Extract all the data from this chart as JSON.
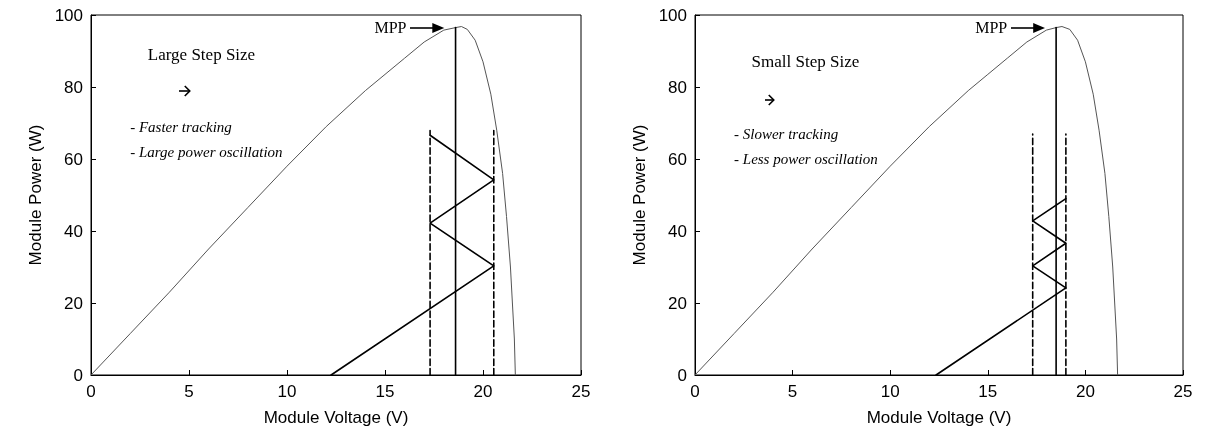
{
  "chart_data": [
    {
      "type": "line",
      "xlabel": "Module Voltage (V)",
      "ylabel": "Module Power (W)",
      "xlim": [
        0,
        25
      ],
      "xticks": [
        0,
        5,
        10,
        15,
        20,
        25
      ],
      "ylim": [
        0,
        100
      ],
      "yticks": [
        0,
        20,
        40,
        60,
        80,
        100
      ],
      "annotations": [
        "Large Step Size",
        "- Faster tracking",
        "- Large power oscillation",
        "MPP"
      ],
      "series": [
        {
          "color": "#555555",
          "x": [
            0,
            2,
            4,
            6,
            8,
            10,
            12,
            14,
            15,
            16,
            17,
            18,
            18.6,
            18.9,
            19.2,
            19.6,
            20,
            20.4,
            20.7,
            21,
            21.2,
            21.4,
            21.5,
            21.6,
            21.65
          ],
          "values": [
            0,
            11.5,
            23,
            35,
            46.5,
            58,
            69,
            79,
            83.5,
            88,
            92.5,
            95.8,
            96.5,
            96.8,
            96,
            93,
            87,
            78,
            68,
            56,
            44,
            30,
            20,
            10,
            0
          ]
        },
        {
          "color": "#000000",
          "x": [
            12.25,
            20.55,
            17.3,
            20.55,
            17.3
          ],
          "values": [
            0,
            30.3,
            42.2,
            54.2,
            66.6
          ]
        },
        {
          "color": "#000000",
          "line_style": "dashed",
          "x": [
            17.3,
            17.3
          ],
          "values": [
            0,
            67.9
          ]
        },
        {
          "color": "#000000",
          "line_style": "dashed",
          "x": [
            20.55,
            20.55
          ],
          "values": [
            0,
            67.9
          ]
        },
        {
          "color": "#000000",
          "x": [
            18.6,
            18.6
          ],
          "values": [
            0,
            96.5
          ]
        }
      ]
    },
    {
      "type": "line",
      "xlabel": "Module Voltage (V)",
      "ylabel": "Module Power (W)",
      "xlim": [
        0,
        25
      ],
      "xticks": [
        0,
        5,
        10,
        15,
        20,
        25
      ],
      "ylim": [
        0,
        100
      ],
      "yticks": [
        0,
        20,
        40,
        60,
        80,
        100
      ],
      "annotations": [
        "Small Step Size",
        "- Slower tracking",
        "- Less power oscillation",
        "MPP"
      ],
      "series": [
        {
          "color": "#555555",
          "x": [
            0,
            2,
            4,
            6,
            8,
            10,
            12,
            14,
            15,
            16,
            17,
            18,
            18.5,
            18.8,
            19.2,
            19.6,
            20,
            20.4,
            20.7,
            21,
            21.2,
            21.4,
            21.5,
            21.6,
            21.65
          ],
          "values": [
            0,
            11.5,
            23,
            35,
            46.5,
            58,
            69,
            79,
            83.5,
            88,
            92.5,
            95.8,
            96.5,
            96.8,
            96,
            93,
            87,
            78,
            68,
            56,
            44,
            30,
            20,
            10,
            0
          ]
        },
        {
          "color": "#000000",
          "x": [
            12.35,
            19.0,
            17.3,
            19.0,
            17.3,
            19.0
          ],
          "values": [
            0,
            24.2,
            30.3,
            36.6,
            42.8,
            49
          ]
        },
        {
          "color": "#000000",
          "line_style": "dashed",
          "x": [
            17.3,
            17.3
          ],
          "values": [
            0,
            66.9
          ]
        },
        {
          "color": "#000000",
          "line_style": "dashed",
          "x": [
            19.0,
            19.0
          ],
          "values": [
            0,
            66.9
          ]
        },
        {
          "color": "#000000",
          "x": [
            18.5,
            18.5
          ],
          "values": [
            0,
            96.5
          ]
        }
      ]
    }
  ]
}
